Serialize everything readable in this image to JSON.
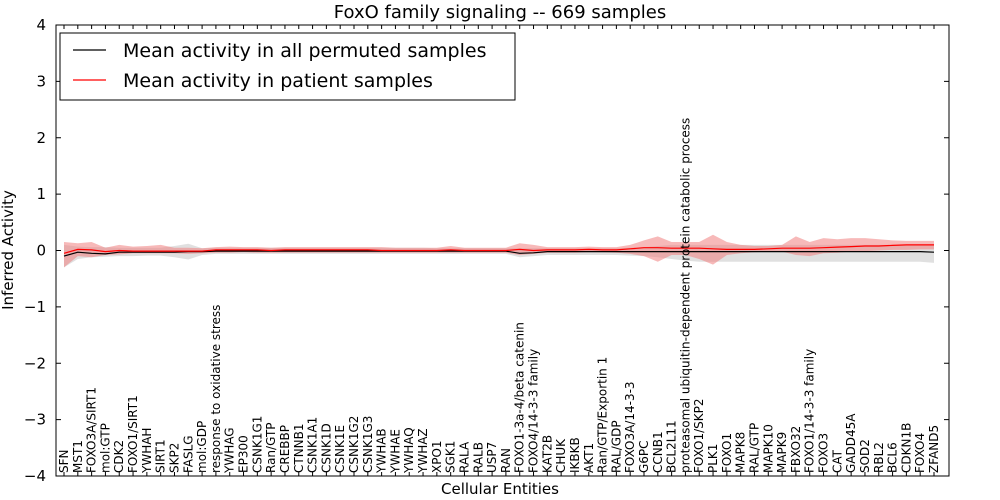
{
  "chart_data": {
    "type": "line",
    "title": "FoxO family signaling -- 669 samples",
    "xlabel": "Cellular Entities",
    "ylabel": "Inferred Activity",
    "ylim": [
      -4,
      4
    ],
    "yticks": [
      -4,
      -3,
      -2,
      -1,
      0,
      1,
      2,
      3,
      4
    ],
    "ytick_labels": [
      "−4",
      "−3",
      "−2",
      "−1",
      "0",
      "1",
      "2",
      "3",
      "4"
    ],
    "legend_position": "top-left",
    "categories": [
      "SFN",
      "MST1",
      "FOXO3A/SIRT1",
      "mol:GTP",
      "CDK2",
      "FOXO1/SIRT1",
      "YWHAH",
      "SIRT1",
      "SKP2",
      "FASLG",
      "mol:GDP",
      "response to oxidative stress",
      "YWHAG",
      "EP300",
      "CSNK1G1",
      "Ran/GTP",
      "CREBBP",
      "CTNNB1",
      "CSNK1A1",
      "CSNK1D",
      "CSNK1E",
      "CSNK1G2",
      "CSNK1G3",
      "YWHAB",
      "YWHAE",
      "YWHAQ",
      "YWHAZ",
      "XPO1",
      "SGK1",
      "RALA",
      "RALB",
      "USP7",
      "RAN",
      "FOXO1-3a-4/beta catenin",
      "FOXO4/14-3-3 family",
      "KAT2B",
      "CHUK",
      "IKBKB",
      "AKT1",
      "Ran/GTP/Exportin 1",
      "RAL/GDP",
      "FOXO3A/14-3-3",
      "G6PC",
      "CCNB1",
      "BCL2L11",
      "proteasomal ubiquitin-dependent protein catabolic process",
      "FOXO1/SKP2",
      "PLK1",
      "FOXO1",
      "MAPK8",
      "RAL/GTP",
      "MAPK10",
      "MAPK9",
      "FBXO32",
      "FOXO1/14-3-3 family",
      "FOXO3",
      "CAT",
      "GADD45A",
      "SOD2",
      "RBL2",
      "BCL6",
      "CDKN1B",
      "FOXO4",
      "ZFAND5"
    ],
    "series": [
      {
        "name": "Mean activity in all permuted samples",
        "color": "#000000",
        "band_color": "#bbbbbb",
        "values": [
          -0.1,
          -0.03,
          -0.05,
          -0.06,
          -0.03,
          -0.03,
          -0.03,
          -0.03,
          -0.03,
          -0.02,
          -0.02,
          -0.01,
          -0.01,
          -0.01,
          -0.01,
          -0.01,
          -0.01,
          -0.01,
          -0.01,
          -0.01,
          -0.01,
          -0.01,
          -0.01,
          -0.01,
          -0.01,
          -0.01,
          -0.01,
          -0.01,
          -0.01,
          -0.01,
          -0.01,
          -0.01,
          -0.01,
          -0.05,
          -0.04,
          -0.02,
          -0.02,
          -0.02,
          -0.02,
          -0.02,
          -0.02,
          -0.02,
          -0.02,
          -0.02,
          -0.02,
          -0.02,
          -0.02,
          -0.02,
          -0.02,
          -0.02,
          -0.02,
          -0.02,
          -0.02,
          -0.02,
          -0.02,
          -0.02,
          -0.02,
          -0.02,
          -0.02,
          -0.02,
          -0.02,
          -0.02,
          -0.02,
          -0.03
        ],
        "lower": [
          -0.3,
          -0.15,
          -0.12,
          -0.11,
          -0.1,
          -0.1,
          -0.09,
          -0.09,
          -0.12,
          -0.16,
          -0.08,
          -0.06,
          -0.06,
          -0.06,
          -0.06,
          -0.06,
          -0.06,
          -0.06,
          -0.06,
          -0.06,
          -0.06,
          -0.06,
          -0.06,
          -0.06,
          -0.06,
          -0.06,
          -0.06,
          -0.06,
          -0.06,
          -0.06,
          -0.06,
          -0.06,
          -0.06,
          -0.12,
          -0.1,
          -0.08,
          -0.08,
          -0.08,
          -0.08,
          -0.08,
          -0.08,
          -0.09,
          -0.1,
          -0.12,
          -0.15,
          -0.18,
          -0.2,
          -0.2,
          -0.2,
          -0.2,
          -0.2,
          -0.2,
          -0.2,
          -0.2,
          -0.2,
          -0.2,
          -0.2,
          -0.2,
          -0.2,
          -0.2,
          -0.2,
          -0.2,
          -0.2,
          -0.22
        ],
        "upper": [
          0.1,
          0.07,
          0.06,
          0.06,
          0.05,
          0.05,
          0.05,
          0.05,
          0.08,
          0.12,
          0.04,
          0.05,
          0.05,
          0.05,
          0.05,
          0.05,
          0.05,
          0.05,
          0.05,
          0.05,
          0.05,
          0.05,
          0.05,
          0.05,
          0.05,
          0.05,
          0.05,
          0.04,
          0.04,
          0.04,
          0.04,
          0.04,
          0.04,
          0.04,
          0.04,
          0.04,
          0.04,
          0.04,
          0.04,
          0.04,
          0.04,
          0.05,
          0.06,
          0.08,
          0.1,
          0.1,
          0.1,
          0.1,
          0.1,
          0.1,
          0.1,
          0.1,
          0.1,
          0.1,
          0.1,
          0.1,
          0.1,
          0.1,
          0.1,
          0.1,
          0.1,
          0.1,
          0.1,
          0.1
        ]
      },
      {
        "name": "Mean activity in patient samples",
        "color": "#ff0000",
        "band_color": "#f08080",
        "values": [
          -0.05,
          0.02,
          0.01,
          -0.02,
          0.0,
          -0.01,
          -0.01,
          -0.01,
          -0.01,
          -0.01,
          -0.01,
          0.01,
          0.01,
          0.01,
          0.01,
          0.0,
          0.01,
          0.01,
          0.01,
          0.01,
          0.01,
          0.01,
          0.01,
          0.0,
          0.0,
          0.0,
          0.0,
          0.0,
          0.01,
          0.0,
          0.0,
          0.0,
          0.0,
          0.02,
          0.0,
          0.01,
          0.01,
          0.01,
          0.02,
          0.01,
          0.01,
          0.03,
          0.05,
          0.05,
          0.04,
          0.04,
          0.04,
          0.03,
          0.02,
          0.02,
          0.02,
          0.03,
          0.04,
          0.04,
          0.04,
          0.05,
          0.06,
          0.07,
          0.08,
          0.08,
          0.09,
          0.1,
          0.1,
          0.1
        ],
        "lower": [
          -0.3,
          -0.1,
          -0.12,
          -0.08,
          -0.07,
          -0.05,
          -0.05,
          -0.05,
          -0.05,
          -0.06,
          -0.05,
          -0.04,
          -0.04,
          -0.03,
          -0.04,
          -0.04,
          -0.04,
          -0.04,
          -0.04,
          -0.04,
          -0.04,
          -0.04,
          -0.04,
          -0.04,
          -0.04,
          -0.04,
          -0.04,
          -0.04,
          -0.04,
          -0.04,
          -0.04,
          -0.04,
          -0.04,
          -0.08,
          -0.06,
          -0.04,
          -0.04,
          -0.04,
          -0.03,
          -0.03,
          -0.04,
          -0.06,
          -0.1,
          -0.2,
          -0.08,
          -0.08,
          -0.15,
          -0.25,
          -0.08,
          -0.05,
          -0.03,
          -0.02,
          -0.02,
          -0.08,
          -0.1,
          -0.05,
          -0.04,
          -0.02,
          -0.01,
          0.0,
          0.01,
          0.01,
          0.02,
          0.02
        ],
        "upper": [
          0.15,
          0.13,
          0.15,
          0.05,
          0.1,
          0.07,
          0.08,
          0.1,
          0.05,
          0.05,
          0.04,
          0.06,
          0.07,
          0.06,
          0.06,
          0.05,
          0.06,
          0.06,
          0.06,
          0.06,
          0.06,
          0.06,
          0.06,
          0.06,
          0.05,
          0.05,
          0.05,
          0.05,
          0.08,
          0.05,
          0.05,
          0.05,
          0.05,
          0.13,
          0.1,
          0.06,
          0.06,
          0.06,
          0.07,
          0.06,
          0.06,
          0.1,
          0.18,
          0.25,
          0.15,
          0.15,
          0.15,
          0.28,
          0.15,
          0.1,
          0.08,
          0.08,
          0.1,
          0.25,
          0.15,
          0.22,
          0.2,
          0.22,
          0.22,
          0.2,
          0.18,
          0.17,
          0.17,
          0.17
        ]
      }
    ]
  }
}
